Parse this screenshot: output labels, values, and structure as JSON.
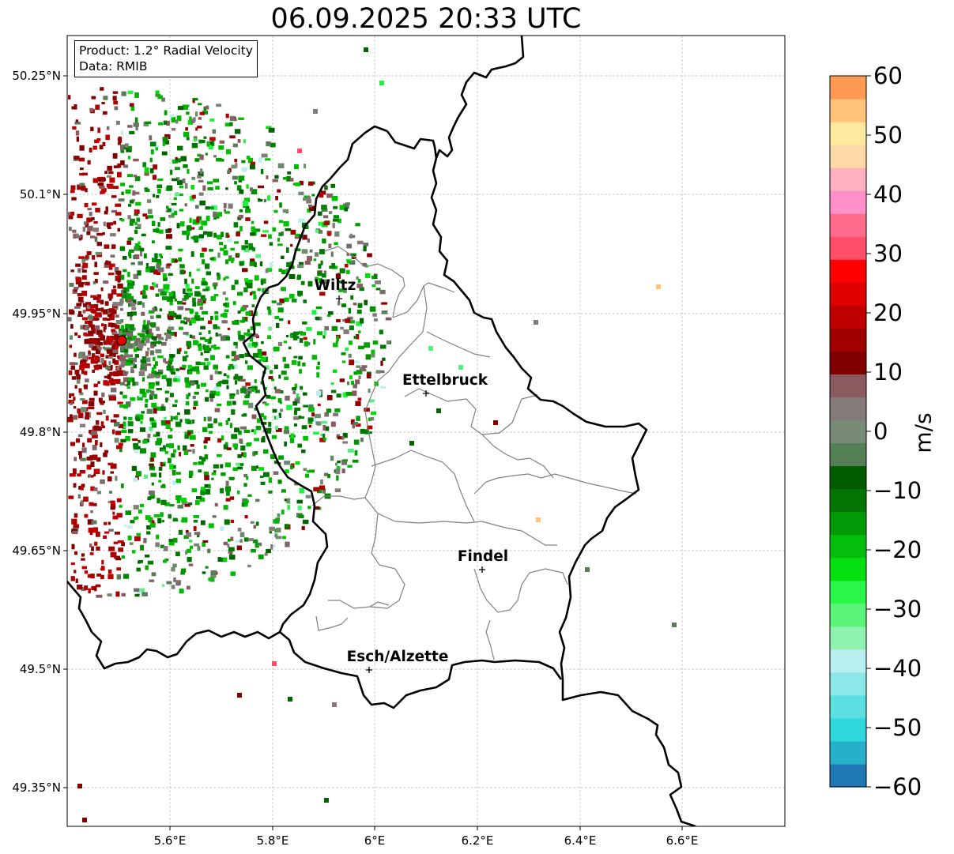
{
  "title": "06.09.2025 20:33 UTC",
  "info": {
    "product": "Product: 1.2° Radial Velocity",
    "data_source": "Data: RMIB"
  },
  "lat_ticks": [
    "50.25°N",
    "50.1°N",
    "49.95°N",
    "49.8°N",
    "49.65°N",
    "49.5°N",
    "49.35°N"
  ],
  "lon_ticks": [
    "5.6°E",
    "5.8°E",
    "6°E",
    "6.2°E",
    "6.4°E",
    "6.6°E"
  ],
  "cities": [
    {
      "name": "Wiltz"
    },
    {
      "name": "Ettelbruck"
    },
    {
      "name": "Findel"
    },
    {
      "name": "Esch/Alzette"
    }
  ],
  "colorbar": {
    "label": "m/s",
    "ticks": [
      "60",
      "50",
      "40",
      "30",
      "20",
      "10",
      "0",
      "−10",
      "−20",
      "−30",
      "−40",
      "−50",
      "−60"
    ],
    "min": -60,
    "max": 60,
    "colors": [
      "#1f78b4",
      "#27b0c9",
      "#2ed8dd",
      "#5be0e2",
      "#8ce8e8",
      "#b8eff0",
      "#8ff2b0",
      "#5cf57a",
      "#2bf74a",
      "#06e011",
      "#04be0c",
      "#039a07",
      "#027504",
      "#005a00",
      "#558055",
      "#7a8a78",
      "#857a7a",
      "#8a5a5e",
      "#800000",
      "#a00000",
      "#c00000",
      "#e00000",
      "#ff0000",
      "#ff4d6a",
      "#ff6b8a",
      "#ff90c8",
      "#ffb0c0",
      "#ffd8a8",
      "#ffe8a0",
      "#ffc47a",
      "#ff9a55"
    ]
  },
  "radar": {
    "site_color": "#e00000"
  }
}
